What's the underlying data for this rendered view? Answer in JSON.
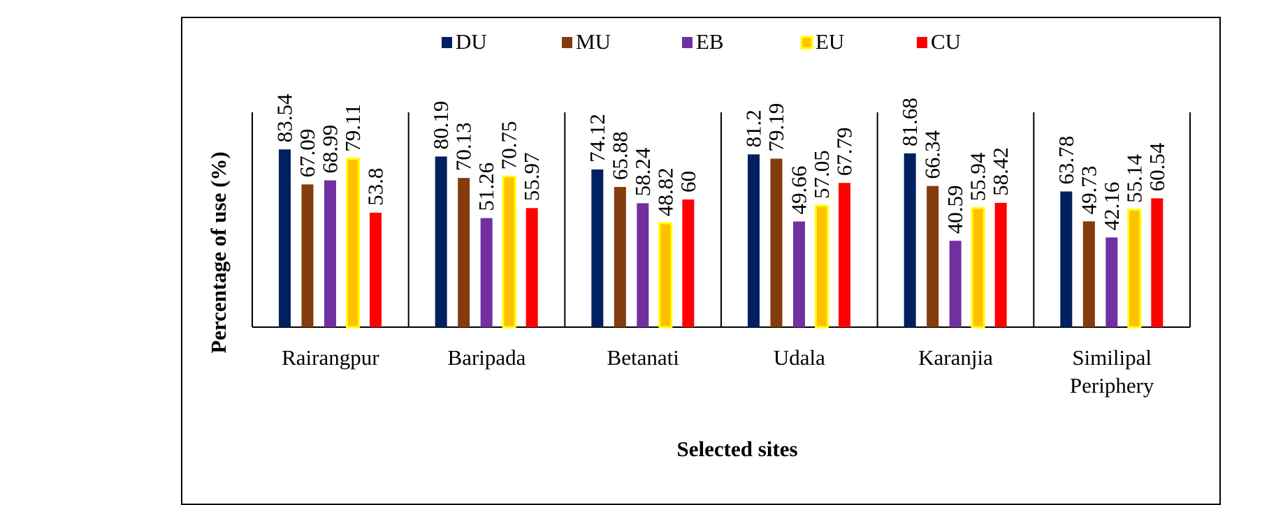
{
  "chart_data": {
    "type": "bar",
    "title": "",
    "xlabel": "Selected sites",
    "ylabel": "Percentage of use (%)",
    "ylim": [
      0,
      100
    ],
    "grid": false,
    "legend_position": "top",
    "categories": [
      [
        "Rairangpur"
      ],
      [
        "Baripada"
      ],
      [
        "Betanati"
      ],
      [
        "Udala"
      ],
      [
        "Karanjia"
      ],
      [
        "Similipal",
        "Periphery"
      ]
    ],
    "series": [
      {
        "name": "DU",
        "color": "#002060",
        "border": "none",
        "values": [
          83.54,
          80.19,
          74.12,
          81.2,
          81.68,
          63.78
        ],
        "labels": [
          "83.54",
          "80.19",
          "74.12",
          "81.2",
          "81.68",
          "63.78"
        ]
      },
      {
        "name": "MU",
        "color": "#843C0C",
        "border": "none",
        "values": [
          67.09,
          70.13,
          65.88,
          79.19,
          66.34,
          49.73
        ],
        "labels": [
          "67.09",
          "70.13",
          "65.88",
          "79.19",
          "66.34",
          "49.73"
        ]
      },
      {
        "name": "EB",
        "color": "#7030A0",
        "border": "none",
        "values": [
          68.99,
          51.26,
          58.24,
          49.66,
          40.59,
          42.16
        ],
        "labels": [
          "68.99",
          "51.26",
          "58.24",
          "49.66",
          "40.59",
          "42.16"
        ]
      },
      {
        "name": "EU",
        "color": "#FFC000",
        "border": "#FFFF00",
        "values": [
          79.11,
          70.75,
          48.82,
          57.05,
          55.94,
          55.14
        ],
        "labels": [
          "79.11",
          "70.75",
          "48.82",
          "57.05",
          "55.94",
          "55.14"
        ]
      },
      {
        "name": "CU",
        "color": "#FF0000",
        "border": "none",
        "values": [
          53.8,
          55.97,
          60,
          67.79,
          58.42,
          60.54
        ],
        "labels": [
          "53.8",
          "55.97",
          "60",
          "67.79",
          "58.42",
          "60.54"
        ]
      }
    ]
  }
}
